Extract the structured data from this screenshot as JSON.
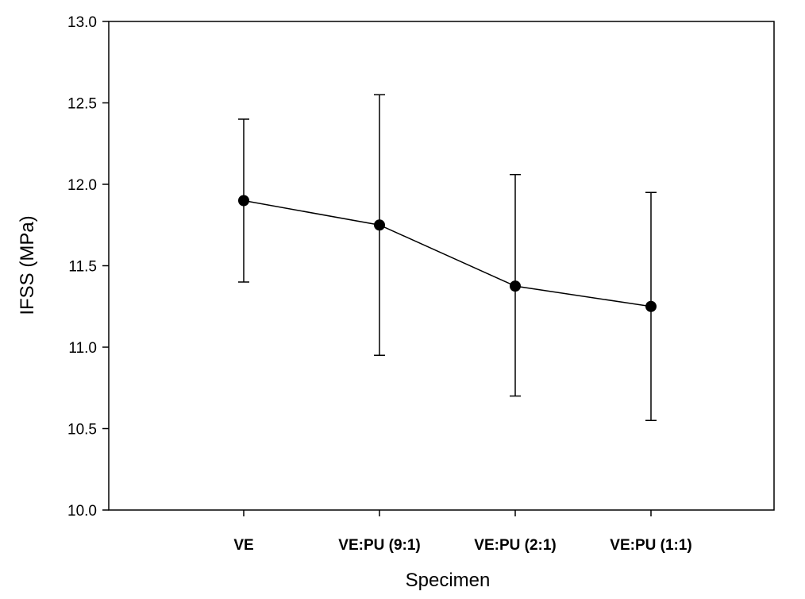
{
  "chart_data": {
    "type": "line",
    "title": "",
    "xlabel": "Specimen",
    "ylabel": "IFSS (MPa)",
    "ylim": [
      10.0,
      13.0
    ],
    "yticks": [
      "10.0",
      "10.5",
      "11.0",
      "11.5",
      "12.0",
      "12.5",
      "13.0"
    ],
    "grid": false,
    "legend": "none",
    "categories": [
      "VE",
      "VE:PU (9:1)",
      "VE:PU (2:1)",
      "VE:PU (1:1)"
    ],
    "series": [
      {
        "values": [
          11.9,
          11.75,
          11.375,
          11.25
        ],
        "error_upper": [
          12.4,
          12.55,
          12.06,
          11.95
        ],
        "error_lower": [
          11.4,
          10.95,
          10.7,
          10.55
        ],
        "color": "#000000",
        "marker": "filled-circle"
      }
    ]
  }
}
